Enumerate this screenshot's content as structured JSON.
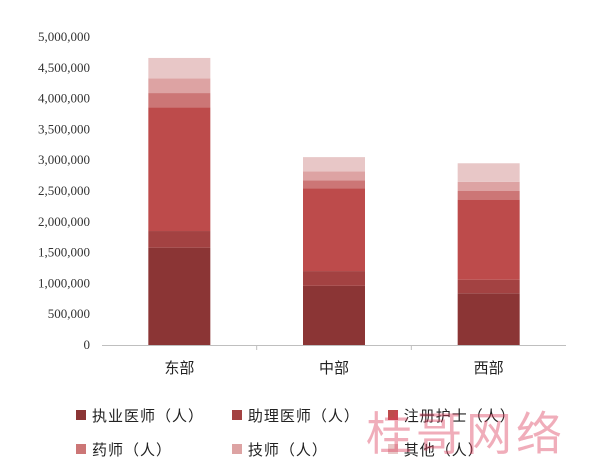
{
  "chart_data": {
    "type": "bar",
    "stacked": true,
    "categories": [
      "东部",
      "中部",
      "西部"
    ],
    "series": [
      {
        "name": "执业医师（人）",
        "color": "#8B3535",
        "values": [
          1580000,
          960000,
          840000
        ]
      },
      {
        "name": "助理医师（人）",
        "color": "#A34242",
        "values": [
          270000,
          240000,
          220000
        ]
      },
      {
        "name": "注册护士（人）",
        "color": "#BD4B4B",
        "values": [
          2010000,
          1340000,
          1300000
        ]
      },
      {
        "name": "药师（人）",
        "color": "#CC7676",
        "values": [
          230000,
          130000,
          140000
        ]
      },
      {
        "name": "技师（人）",
        "color": "#DDA3A3",
        "values": [
          240000,
          150000,
          150000
        ]
      },
      {
        "name": "其他（人）",
        "color": "#E8C7C7",
        "values": [
          330000,
          230000,
          300000
        ]
      }
    ],
    "ylim": [
      0,
      5000000
    ],
    "yticks": [
      "0",
      "500,000",
      "1,000,000",
      "1,500,000",
      "2,000,000",
      "2,500,000",
      "3,000,000",
      "3,500,000",
      "4,000,000",
      "4,500,000",
      "5,000,000"
    ],
    "grid": false,
    "legend_position": "bottom"
  },
  "watermark": "桂哥网络"
}
